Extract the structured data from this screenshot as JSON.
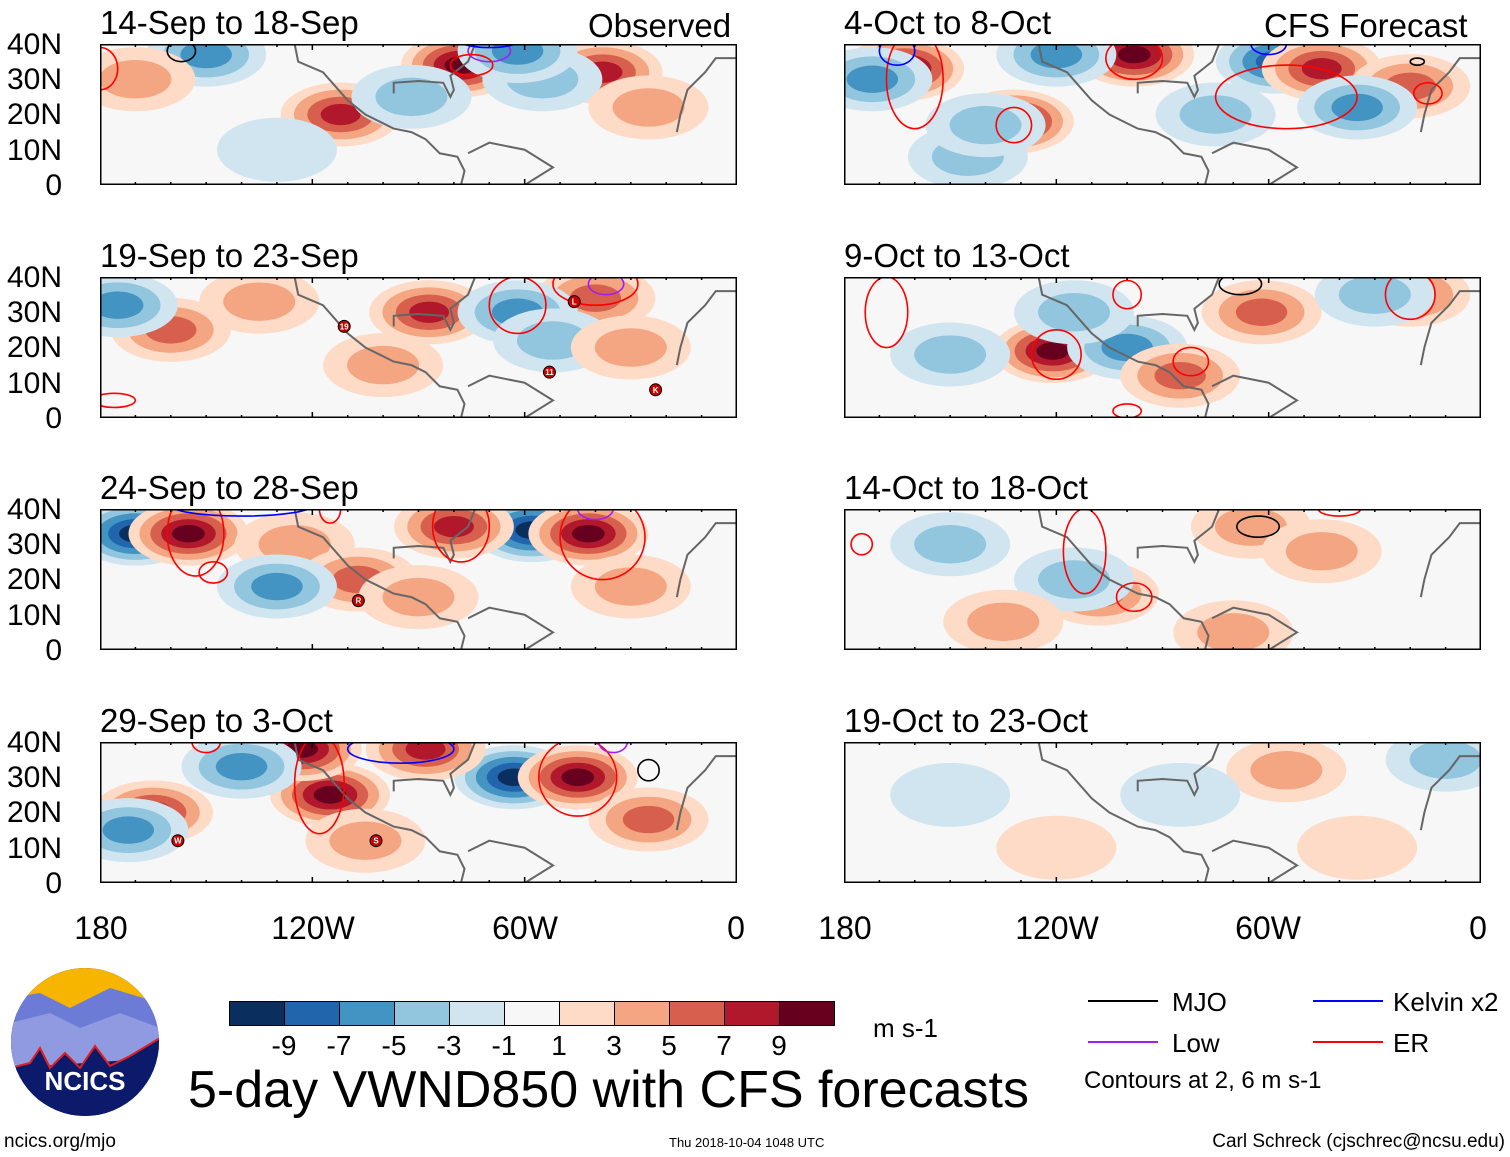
{
  "header": {
    "left_label": "Observed",
    "right_label": "CFS Forecast"
  },
  "y_axis_labels": [
    "40N",
    "30N",
    "20N",
    "10N",
    "0"
  ],
  "x_axis_labels": [
    "180",
    "120W",
    "60W",
    "0"
  ],
  "panels": [
    {
      "title": "14-Sep to 18-Sep",
      "col": 0,
      "row": 0,
      "anoms": [
        [
          -112,
          20,
          7
        ],
        [
          -78,
          34,
          9
        ],
        [
          -38,
          32,
          7
        ],
        [
          -150,
          37,
          -5
        ],
        [
          -55,
          30,
          -3
        ],
        [
          -62,
          38,
          -5
        ],
        [
          -170,
          30,
          3
        ],
        [
          -92,
          25,
          -3
        ],
        [
          -25,
          22,
          3
        ],
        [
          -130,
          10,
          -1
        ]
      ],
      "contours": [
        [
          "MJO",
          -157,
          38,
          4,
          3
        ],
        [
          "Low",
          -70,
          38,
          6,
          3
        ],
        [
          "Kelvin",
          -70,
          42,
          10,
          3
        ],
        [
          "ER",
          -75,
          34,
          6,
          3
        ],
        [
          "ER",
          -180,
          33,
          5,
          6
        ]
      ],
      "storms": []
    },
    {
      "title": "19-Sep to 23-Sep",
      "col": 0,
      "row": 1,
      "anoms": [
        [
          -160,
          25,
          5
        ],
        [
          -135,
          33,
          3
        ],
        [
          -87,
          30,
          7
        ],
        [
          -40,
          34,
          5
        ],
        [
          -175,
          32,
          -5
        ],
        [
          -62,
          30,
          -5
        ],
        [
          -52,
          22,
          -3
        ],
        [
          -30,
          20,
          3
        ],
        [
          -100,
          15,
          3
        ]
      ],
      "contours": [
        [
          "ER",
          -62,
          32,
          8,
          8
        ],
        [
          "ER",
          -40,
          38,
          12,
          6
        ],
        [
          "Low",
          -37,
          38,
          5,
          3
        ],
        [
          "ER",
          -176,
          5,
          6,
          2
        ]
      ],
      "storms": [
        [
          "19",
          -111,
          26
        ],
        [
          "L",
          -46,
          33
        ],
        [
          "11",
          -53,
          13
        ],
        [
          "K",
          -23,
          8
        ]
      ]
    },
    {
      "title": "24-Sep to 28-Sep",
      "col": 0,
      "row": 2,
      "anoms": [
        [
          -170,
          33,
          -9
        ],
        [
          -155,
          33,
          9
        ],
        [
          -58,
          34,
          -9
        ],
        [
          -42,
          33,
          9
        ],
        [
          -80,
          35,
          7
        ],
        [
          -125,
          30,
          3
        ],
        [
          -107,
          20,
          5
        ],
        [
          -130,
          18,
          -5
        ],
        [
          -90,
          15,
          3
        ],
        [
          -30,
          18,
          3
        ]
      ],
      "contours": [
        [
          "ER",
          -153,
          33,
          8,
          12
        ],
        [
          "ER",
          -148,
          22,
          4,
          3
        ],
        [
          "Kelvin",
          -140,
          41,
          20,
          3
        ],
        [
          "ER",
          -78,
          35,
          8,
          10
        ],
        [
          "ER",
          -38,
          32,
          12,
          12
        ],
        [
          "Low",
          -40,
          40,
          5,
          3
        ],
        [
          "ER",
          -115,
          40,
          3,
          4
        ]
      ],
      "storms": [
        [
          "R",
          -107,
          14
        ]
      ]
    },
    {
      "title": "29-Sep to 3-Oct",
      "col": 0,
      "row": 3,
      "anoms": [
        [
          -165,
          20,
          7
        ],
        [
          -115,
          25,
          9
        ],
        [
          -123,
          38,
          9
        ],
        [
          -63,
          30,
          -9
        ],
        [
          -45,
          30,
          9
        ],
        [
          -88,
          38,
          7
        ],
        [
          -140,
          33,
          -5
        ],
        [
          -172,
          15,
          -5
        ],
        [
          -25,
          18,
          5
        ],
        [
          -105,
          12,
          3
        ]
      ],
      "contours": [
        [
          "ER",
          -118,
          28,
          7,
          14
        ],
        [
          "ER",
          -45,
          30,
          11,
          11
        ],
        [
          "Kelvin",
          -95,
          38,
          15,
          4
        ],
        [
          "Low",
          -35,
          40,
          4,
          3
        ],
        [
          "MJO",
          -25,
          32,
          3,
          3
        ],
        [
          "ER",
          -150,
          40,
          4,
          3
        ]
      ],
      "storms": [
        [
          "W",
          -158,
          12
        ],
        [
          "S",
          -102,
          12
        ]
      ]
    },
    {
      "title": "4-Oct to 8-Oct",
      "col": 1,
      "row": 0,
      "anoms": [
        [
          -163,
          33,
          9
        ],
        [
          -132,
          18,
          9
        ],
        [
          -98,
          37,
          9
        ],
        [
          -58,
          35,
          -7
        ],
        [
          -45,
          33,
          7
        ],
        [
          -20,
          28,
          5
        ],
        [
          -120,
          37,
          -5
        ],
        [
          -145,
          8,
          -3
        ],
        [
          -172,
          30,
          -5
        ],
        [
          -35,
          22,
          -5
        ],
        [
          -75,
          20,
          -3
        ],
        [
          -140,
          17,
          -3
        ]
      ],
      "contours": [
        [
          "ER",
          -160,
          30,
          8,
          14
        ],
        [
          "ER",
          -132,
          17,
          5,
          5
        ],
        [
          "ER",
          -98,
          36,
          8,
          6
        ],
        [
          "ER",
          -55,
          25,
          20,
          9
        ],
        [
          "Kelvin",
          -165,
          38,
          5,
          4
        ],
        [
          "Kelvin",
          -60,
          40,
          5,
          3
        ],
        [
          "MJO",
          -18,
          35,
          2,
          1
        ],
        [
          "ER",
          -15,
          26,
          4,
          3
        ]
      ],
      "storms": []
    },
    {
      "title": "9-Oct to 13-Oct",
      "col": 1,
      "row": 1,
      "anoms": [
        [
          -121,
          19,
          9
        ],
        [
          -100,
          20,
          -5
        ],
        [
          -85,
          12,
          5
        ],
        [
          -62,
          30,
          5
        ],
        [
          -20,
          35,
          5
        ],
        [
          -150,
          18,
          -3
        ],
        [
          -30,
          35,
          -3
        ],
        [
          -115,
          30,
          -3
        ]
      ],
      "contours": [
        [
          "ER",
          -120,
          18,
          7,
          7
        ],
        [
          "ER",
          -168,
          30,
          6,
          10
        ],
        [
          "ER",
          -100,
          35,
          4,
          4
        ],
        [
          "MJO",
          -68,
          38,
          6,
          3
        ],
        [
          "ER",
          -82,
          16,
          5,
          4
        ],
        [
          "ER",
          -20,
          35,
          7,
          7
        ],
        [
          "ER",
          -100,
          2,
          4,
          2
        ]
      ],
      "storms": []
    },
    {
      "title": "14-Oct to 18-Oct",
      "col": 1,
      "row": 2,
      "anoms": [
        [
          -150,
          30,
          -3
        ],
        [
          -108,
          16,
          5
        ],
        [
          -65,
          35,
          3
        ],
        [
          -115,
          20,
          -3
        ],
        [
          -45,
          28,
          3
        ],
        [
          -135,
          8,
          3
        ],
        [
          -70,
          5,
          3
        ]
      ],
      "contours": [
        [
          "ER",
          -112,
          28,
          6,
          12
        ],
        [
          "ER",
          -98,
          15,
          5,
          4
        ],
        [
          "MJO",
          -63,
          35,
          6,
          3
        ],
        [
          "ER",
          -175,
          30,
          3,
          3
        ],
        [
          "ER",
          -40,
          40,
          6,
          2
        ]
      ],
      "storms": []
    },
    {
      "title": "19-Oct to 23-Oct",
      "col": 1,
      "row": 3,
      "anoms": [
        [
          -55,
          32,
          3
        ],
        [
          -150,
          25,
          -1
        ],
        [
          -120,
          10,
          1
        ],
        [
          -85,
          25,
          -1
        ],
        [
          -10,
          35,
          -3
        ],
        [
          -35,
          10,
          1
        ]
      ],
      "contours": [],
      "storms": []
    }
  ],
  "colorbar": {
    "colors": [
      "#0a2f5e",
      "#2166ac",
      "#4393c3",
      "#92c5de",
      "#d1e5f0",
      "#f7f7f7",
      "#fddbc7",
      "#f4a582",
      "#d6604d",
      "#b2182b",
      "#67001f"
    ],
    "labels": [
      "-9",
      "-7",
      "-5",
      "-3",
      "-1",
      "1",
      "3",
      "5",
      "7",
      "9"
    ],
    "units": "m s-1"
  },
  "legend": {
    "items": [
      {
        "label": "MJO",
        "color": "#000000"
      },
      {
        "label": "Kelvin x2",
        "color": "#0000ff"
      },
      {
        "label": "Low",
        "color": "#a020f0"
      },
      {
        "label": "ER",
        "color": "#ff0000"
      }
    ],
    "contour_note": "Contours at 2, 6 m s-1"
  },
  "title": "5-day VWND850 with CFS forecasts",
  "logo_text": "NCICS",
  "footer": {
    "url": "ncics.org/mjo",
    "timestamp": "Thu 2018-10-04 1048 UTC",
    "author": "Carl Schreck (cjschrec@ncsu.edu)"
  }
}
